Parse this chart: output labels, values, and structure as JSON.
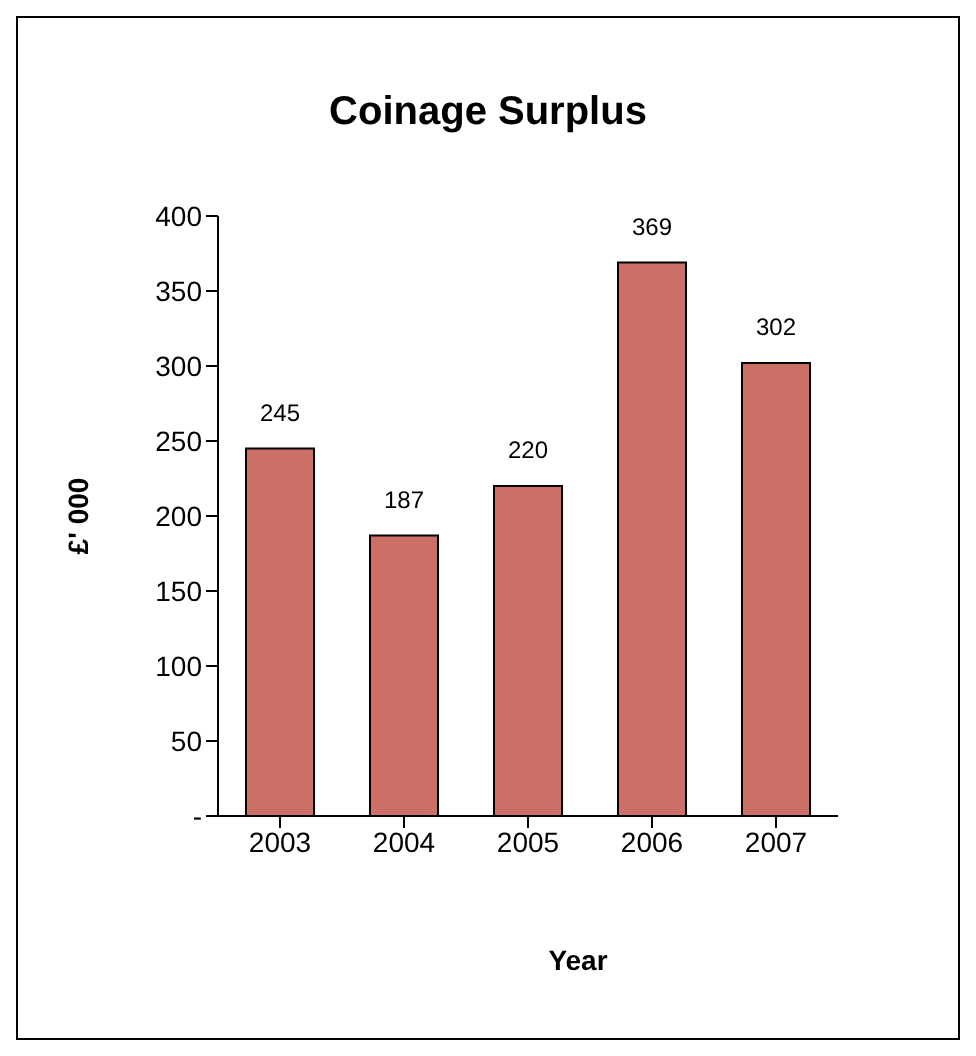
{
  "chart_data": {
    "type": "bar",
    "title": "Coinage Surplus",
    "xlabel": "Year",
    "ylabel": "£' 000",
    "categories": [
      "2003",
      "2004",
      "2005",
      "2006",
      "2007"
    ],
    "values": [
      245,
      187,
      220,
      369,
      302
    ],
    "color": "#cc6f66",
    "ylim": [
      0,
      400
    ],
    "yticks": [
      {
        "value": 0,
        "label": "-"
      },
      50,
      100,
      150,
      200,
      250,
      300,
      350,
      400
    ],
    "data_labels": true,
    "grid": false,
    "legend": false
  }
}
